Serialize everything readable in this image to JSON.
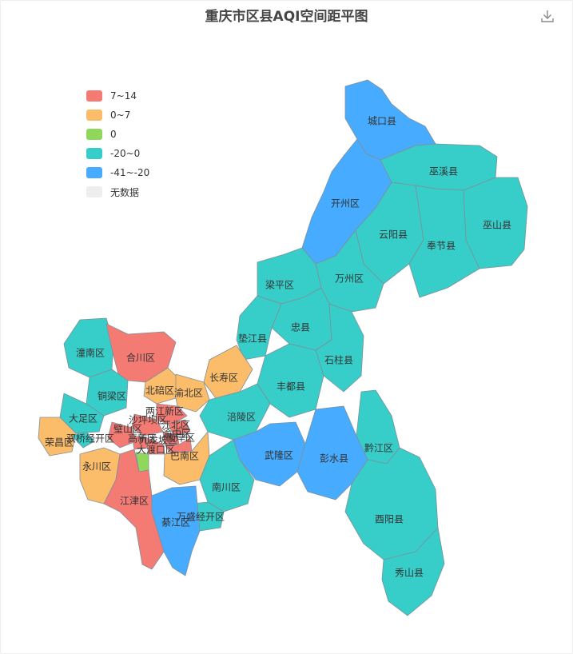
{
  "title": "重庆市区县AQI空间距平图",
  "legend": [
    {
      "label": "7~14",
      "color": "#f47a74"
    },
    {
      "label": "0~7",
      "color": "#fcbd6b"
    },
    {
      "label": "0",
      "color": "#90d85c"
    },
    {
      "label": "-20~0",
      "color": "#37cdc8"
    },
    {
      "label": "-41~-20",
      "color": "#47abff"
    },
    {
      "label": "无数据",
      "color": "#eeeeee"
    }
  ],
  "toolbar": {
    "download_icon": "download-icon"
  },
  "regions": [
    {
      "name": "城口县",
      "class": "-41~-20"
    },
    {
      "name": "巫溪县",
      "class": "-20~0"
    },
    {
      "name": "开州区",
      "class": "-41~-20"
    },
    {
      "name": "云阳县",
      "class": "-20~0"
    },
    {
      "name": "巫山县",
      "class": "-20~0"
    },
    {
      "name": "奉节县",
      "class": "-20~0"
    },
    {
      "name": "梁平区",
      "class": "-20~0"
    },
    {
      "name": "万州区",
      "class": "-20~0"
    },
    {
      "name": "忠县",
      "class": "-20~0"
    },
    {
      "name": "垫江县",
      "class": "-20~0"
    },
    {
      "name": "石柱县",
      "class": "-20~0"
    },
    {
      "name": "潼南区",
      "class": "-20~0"
    },
    {
      "name": "合川区",
      "class": "7~14"
    },
    {
      "name": "长寿区",
      "class": "0~7"
    },
    {
      "name": "丰都县",
      "class": "-20~0"
    },
    {
      "name": "北碚区",
      "class": "0~7"
    },
    {
      "name": "渝北区",
      "class": "0~7"
    },
    {
      "name": "铜梁区",
      "class": "-20~0"
    },
    {
      "name": "两江新区",
      "class": "7~14"
    },
    {
      "name": "大足区",
      "class": "-20~0"
    },
    {
      "name": "沙坪坝区",
      "class": "7~14"
    },
    {
      "name": "江北区",
      "class": "7~14"
    },
    {
      "name": "涪陵区",
      "class": "-20~0"
    },
    {
      "name": "璧山区",
      "class": "7~14"
    },
    {
      "name": "渝中区",
      "class": "7~14"
    },
    {
      "name": "荣昌区",
      "class": "0~7"
    },
    {
      "name": "双桥经开区",
      "class": "-20~0"
    },
    {
      "name": "高新区",
      "class": "7~14"
    },
    {
      "name": "九龙坡区",
      "class": "7~14"
    },
    {
      "name": "南岸区",
      "class": "7~14"
    },
    {
      "name": "大渡口区",
      "class": "0"
    },
    {
      "name": "黔江区",
      "class": "-20~0"
    },
    {
      "name": "武隆区",
      "class": "-41~-20"
    },
    {
      "name": "巴南区",
      "class": "0~7"
    },
    {
      "name": "彭水县",
      "class": "-41~-20"
    },
    {
      "name": "永川区",
      "class": "0~7"
    },
    {
      "name": "南川区",
      "class": "-20~0"
    },
    {
      "name": "江津区",
      "class": "7~14"
    },
    {
      "name": "万盛经开区",
      "class": "-20~0"
    },
    {
      "name": "綦江区",
      "class": "-41~-20"
    },
    {
      "name": "酉阳县",
      "class": "-20~0"
    },
    {
      "name": "秀山县",
      "class": "-20~0"
    }
  ]
}
